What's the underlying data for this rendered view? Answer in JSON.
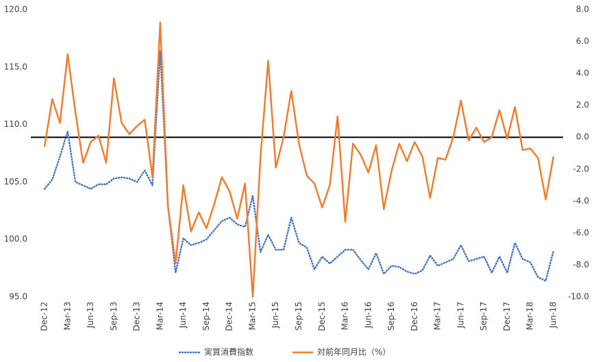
{
  "chart_data": {
    "type": "line",
    "categories": [
      "Dec-12",
      null,
      null,
      "Mar-13",
      null,
      null,
      "Jun-13",
      null,
      null,
      "Sep-13",
      null,
      null,
      "Dec-13",
      null,
      null,
      "Mar-14",
      null,
      null,
      "Jun-14",
      null,
      null,
      "Sep-14",
      null,
      null,
      "Dec-14",
      null,
      null,
      "Mar-15",
      null,
      null,
      "Jun-15",
      null,
      null,
      "Sep-15",
      null,
      null,
      "Dec-15",
      null,
      null,
      "Mar-16",
      null,
      null,
      "Jun-16",
      null,
      null,
      "Sep-16",
      null,
      null,
      "Dec-16",
      null,
      null,
      "Mar-17",
      null,
      null,
      "Jun-17",
      null,
      null,
      "Sep-17",
      null,
      null,
      "Dec-17",
      null,
      null,
      "Mar-18",
      null,
      null,
      "Jun-18"
    ],
    "series": [
      {
        "name": "実質消費指数",
        "color": "#4472c4",
        "dash": "dotted",
        "axis": "y",
        "values": [
          104.4,
          105.2,
          107.2,
          109.4,
          105.0,
          104.7,
          104.4,
          104.8,
          104.8,
          105.3,
          105.4,
          105.3,
          105.0,
          106.0,
          104.7,
          116.4,
          102.9,
          97.1,
          100.1,
          99.5,
          99.7,
          100.0,
          100.8,
          101.6,
          101.9,
          101.3,
          101.1,
          103.8,
          98.9,
          100.4,
          99.1,
          99.1,
          101.9,
          99.7,
          99.3,
          97.4,
          98.5,
          97.9,
          98.5,
          99.1,
          99.1,
          98.2,
          97.4,
          98.8,
          97.0,
          97.7,
          97.6,
          97.2,
          97.0,
          97.3,
          98.6,
          97.7,
          98.0,
          98.3,
          99.5,
          98.1,
          98.3,
          98.5,
          97.1,
          98.5,
          97.1,
          99.7,
          98.3,
          98.0,
          96.7,
          96.4,
          99.0
        ]
      },
      {
        "name": "対前年同月比（%）",
        "color": "#ed7d31",
        "dash": "solid",
        "axis": "y2",
        "values": [
          -0.6,
          2.4,
          0.9,
          5.2,
          1.6,
          -1.6,
          -0.3,
          0.1,
          -1.6,
          3.7,
          0.9,
          0.2,
          0.7,
          1.1,
          -2.5,
          7.2,
          -4.3,
          -7.9,
          -3.0,
          -5.9,
          -4.7,
          -5.7,
          -4.2,
          -2.5,
          -3.4,
          -5.1,
          -2.9,
          -10.0,
          -1.3,
          4.8,
          -1.9,
          0.0,
          2.9,
          -0.4,
          -2.4,
          -2.9,
          -4.4,
          -3.0,
          1.3,
          -5.3,
          -0.4,
          -1.1,
          -2.2,
          -0.5,
          -4.5,
          -2.1,
          -0.4,
          -1.5,
          -0.3,
          -1.2,
          -3.8,
          -1.3,
          -1.4,
          0.0,
          2.3,
          -0.2,
          0.6,
          -0.3,
          0.0,
          1.7,
          -0.1,
          1.9,
          -0.8,
          -0.7,
          -1.3,
          -3.9,
          -1.2
        ]
      }
    ],
    "ylim": [
      95,
      120
    ],
    "yticks": [
      {
        "value": 95,
        "label": "95.0"
      },
      {
        "value": 100,
        "label": "100.0"
      },
      {
        "value": 105,
        "label": "105.0"
      },
      {
        "value": 110,
        "label": "110.0"
      },
      {
        "value": 115,
        "label": "115.0"
      },
      {
        "value": 120,
        "label": "120.0"
      }
    ],
    "y2lim": [
      -10,
      8
    ],
    "y2ticks": [
      {
        "value": -10,
        "label": "-10.0"
      },
      {
        "value": -8,
        "label": "-8.0"
      },
      {
        "value": -6,
        "label": "-6.0"
      },
      {
        "value": -4,
        "label": "-4.0"
      },
      {
        "value": -2,
        "label": "-2.0"
      },
      {
        "value": 0,
        "label": "0.0"
      },
      {
        "value": 2,
        "label": "2.0"
      },
      {
        "value": 4,
        "label": "4.0"
      },
      {
        "value": 6,
        "label": "6.0"
      },
      {
        "value": 8,
        "label": "8.0"
      }
    ],
    "y2_zero_line": true,
    "grid": false,
    "legend": "bottom"
  }
}
